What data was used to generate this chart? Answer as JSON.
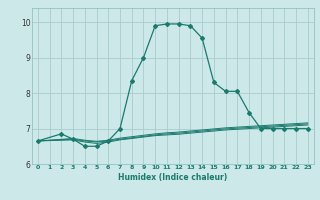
{
  "title": "",
  "xlabel": "Humidex (Indice chaleur)",
  "bg_color": "#cce8e8",
  "grid_color": "#aacccc",
  "line_color": "#1a7a6e",
  "xlim": [
    -0.5,
    23.5
  ],
  "ylim": [
    6.0,
    10.4
  ],
  "yticks": [
    6,
    7,
    8,
    9,
    10
  ],
  "xticks": [
    0,
    1,
    2,
    3,
    4,
    5,
    6,
    7,
    8,
    9,
    10,
    11,
    12,
    13,
    14,
    15,
    16,
    17,
    18,
    19,
    20,
    21,
    22,
    23
  ],
  "main_curve_x": [
    0,
    2,
    3,
    4,
    5,
    6,
    7,
    8,
    9,
    10,
    11,
    12,
    13,
    14,
    15,
    16,
    17,
    18,
    19,
    20,
    21,
    22,
    23
  ],
  "main_curve_y": [
    6.65,
    6.85,
    6.7,
    6.5,
    6.5,
    6.65,
    7.0,
    8.35,
    9.0,
    9.9,
    9.95,
    9.95,
    9.9,
    9.55,
    8.3,
    8.05,
    8.05,
    7.45,
    7.0,
    7.0,
    7.0,
    7.0,
    7.0
  ],
  "flat_curve1_x": [
    0,
    3,
    4,
    5,
    6,
    7,
    8,
    9,
    10,
    11,
    12,
    13,
    14,
    15,
    16,
    17,
    18,
    19,
    20,
    21,
    22,
    23
  ],
  "flat_curve1_y": [
    6.65,
    6.68,
    6.62,
    6.58,
    6.62,
    6.68,
    6.72,
    6.76,
    6.8,
    6.82,
    6.84,
    6.87,
    6.9,
    6.93,
    6.96,
    6.98,
    7.0,
    7.02,
    7.04,
    7.06,
    7.08,
    7.1
  ],
  "flat_curve2_x": [
    0,
    3,
    4,
    5,
    6,
    7,
    8,
    9,
    10,
    11,
    12,
    13,
    14,
    15,
    16,
    17,
    18,
    19,
    20,
    21,
    22,
    23
  ],
  "flat_curve2_y": [
    6.65,
    6.7,
    6.65,
    6.62,
    6.65,
    6.7,
    6.74,
    6.78,
    6.82,
    6.85,
    6.87,
    6.9,
    6.93,
    6.96,
    6.99,
    7.01,
    7.03,
    7.05,
    7.07,
    7.09,
    7.11,
    7.13
  ],
  "flat_curve3_x": [
    0,
    3,
    4,
    5,
    6,
    7,
    8,
    9,
    10,
    11,
    12,
    13,
    14,
    15,
    16,
    17,
    18,
    19,
    20,
    21,
    22,
    23
  ],
  "flat_curve3_y": [
    6.65,
    6.72,
    6.67,
    6.64,
    6.67,
    6.73,
    6.77,
    6.81,
    6.85,
    6.88,
    6.9,
    6.93,
    6.96,
    6.99,
    7.02,
    7.04,
    7.06,
    7.08,
    7.1,
    7.12,
    7.14,
    7.16
  ]
}
